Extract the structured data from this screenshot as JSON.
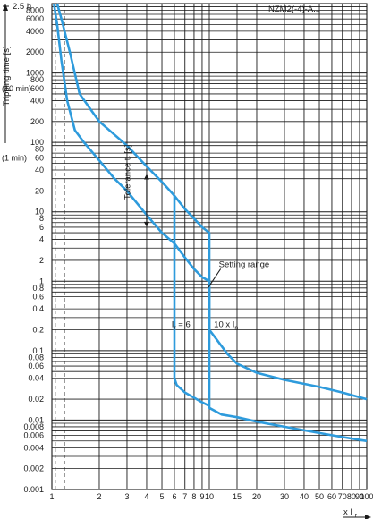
{
  "chart_data": {
    "type": "line",
    "title": "NZM2(-4)-A...",
    "xlabel": "x I",
    "xlabel_sub": "r",
    "ylabel": "Tripping time [s]",
    "y_top_label": "2.5 h",
    "y_annotations": [
      {
        "text": "(10 min)",
        "y": 600
      },
      {
        "text": "(1 min)",
        "y": 60
      }
    ],
    "x_scale": "log",
    "y_scale": "log",
    "xlim": [
      1,
      100
    ],
    "ylim": [
      0.001,
      10000
    ],
    "grid": true,
    "x_ticks": [
      1,
      2,
      3,
      4,
      5,
      6,
      7,
      8,
      9,
      10,
      15,
      20,
      30,
      40,
      50,
      60,
      70,
      80,
      90,
      100
    ],
    "x_tick_labels": [
      "1",
      "2",
      "3",
      "4",
      "5",
      "6",
      "7",
      "8",
      "9",
      "10",
      "15",
      "20",
      "30",
      "40",
      "50",
      "60",
      "70",
      "80",
      "90",
      "100"
    ],
    "y_ticks": [
      8000,
      6000,
      4000,
      2000,
      1000,
      800,
      600,
      400,
      200,
      100,
      80,
      60,
      40,
      20,
      10,
      8,
      6,
      4,
      2,
      1,
      0.8,
      0.6,
      0.4,
      0.2,
      0.1,
      0.08,
      0.06,
      0.04,
      0.02,
      0.01,
      0.008,
      0.006,
      0.004,
      0.002,
      0.001
    ],
    "y_tick_labels": [
      "8000",
      "6000",
      "4000",
      "2000",
      "1000",
      "800",
      "600",
      "400",
      "200",
      "100",
      "80",
      "60",
      "40",
      "20",
      "10",
      "8",
      "6",
      "4",
      "2",
      "1",
      "0.8",
      "0.6",
      "0.4",
      "0.2",
      "0.1",
      "0.08",
      "0.06",
      "0.04",
      "0.02",
      "0.01",
      "0.008",
      "0.006",
      "0.004",
      "0.002",
      "0.001"
    ],
    "dashed_x": [
      1.05,
      1.2
    ],
    "series": [
      {
        "key": "upper",
        "points": [
          [
            1.08,
            10000
          ],
          [
            1.15,
            6000
          ],
          [
            1.3,
            2000
          ],
          [
            1.5,
            500
          ],
          [
            1.8,
            280
          ],
          [
            2.0,
            200
          ],
          [
            3.0,
            90
          ],
          [
            4.0,
            45
          ],
          [
            5.0,
            27
          ],
          [
            6.0,
            17
          ],
          [
            7.0,
            11
          ],
          [
            8.0,
            8
          ],
          [
            9.0,
            6
          ],
          [
            10.0,
            5
          ],
          [
            10.0,
            0.2
          ],
          [
            11.0,
            0.15
          ],
          [
            13.0,
            0.09
          ],
          [
            15.0,
            0.065
          ],
          [
            20.0,
            0.048
          ],
          [
            30.0,
            0.038
          ],
          [
            50.0,
            0.03
          ],
          [
            70.0,
            0.025
          ],
          [
            100.0,
            0.02
          ]
        ]
      },
      {
        "key": "lower",
        "points": [
          [
            1.03,
            10000
          ],
          [
            1.08,
            5000
          ],
          [
            1.15,
            1500
          ],
          [
            1.25,
            400
          ],
          [
            1.4,
            150
          ],
          [
            1.6,
            100
          ],
          [
            2.0,
            55
          ],
          [
            2.5,
            30
          ],
          [
            3.0,
            20
          ],
          [
            4.0,
            9
          ],
          [
            5.0,
            5
          ],
          [
            6.0,
            3.5
          ],
          [
            7.0,
            2.2
          ],
          [
            8.0,
            1.5
          ],
          [
            9.0,
            1.15
          ],
          [
            10.0,
            1.0
          ],
          [
            10.0,
            0.015
          ],
          [
            12.0,
            0.012
          ],
          [
            15.0,
            0.011
          ],
          [
            20.0,
            0.0095
          ],
          [
            30.0,
            0.008
          ],
          [
            50.0,
            0.0065
          ],
          [
            70.0,
            0.0057
          ],
          [
            100.0,
            0.005
          ]
        ]
      },
      {
        "key": "i_r_6",
        "points": [
          [
            6.0,
            17
          ],
          [
            6.0,
            0.04
          ],
          [
            6.2,
            0.032
          ],
          [
            7.0,
            0.025
          ],
          [
            8.0,
            0.021
          ],
          [
            9.0,
            0.018
          ],
          [
            10.0,
            0.016
          ]
        ]
      }
    ],
    "annotations": [
      {
        "text": "Tolerance t",
        "sub": "r",
        "suffix": " [s]",
        "x": 3.15,
        "y": 15,
        "rotate": -90
      },
      {
        "text": "Setting range",
        "x": 11.5,
        "y": 1.6,
        "leader_to": [
          9.8,
          0.8
        ]
      },
      {
        "text": "I",
        "sub": "r",
        "suffix": " = 6",
        "x": 5.75,
        "y": 0.22
      },
      {
        "text": "10 x I",
        "sub": "n",
        "x": 10.7,
        "y": 0.22
      }
    ],
    "tolerance_arrow": {
      "x": 4,
      "from": 35,
      "to": 6
    },
    "colors": {
      "curve": "#2e9bdc",
      "grid": "#1a1a1a",
      "dashed": "#1a1a1a"
    }
  }
}
